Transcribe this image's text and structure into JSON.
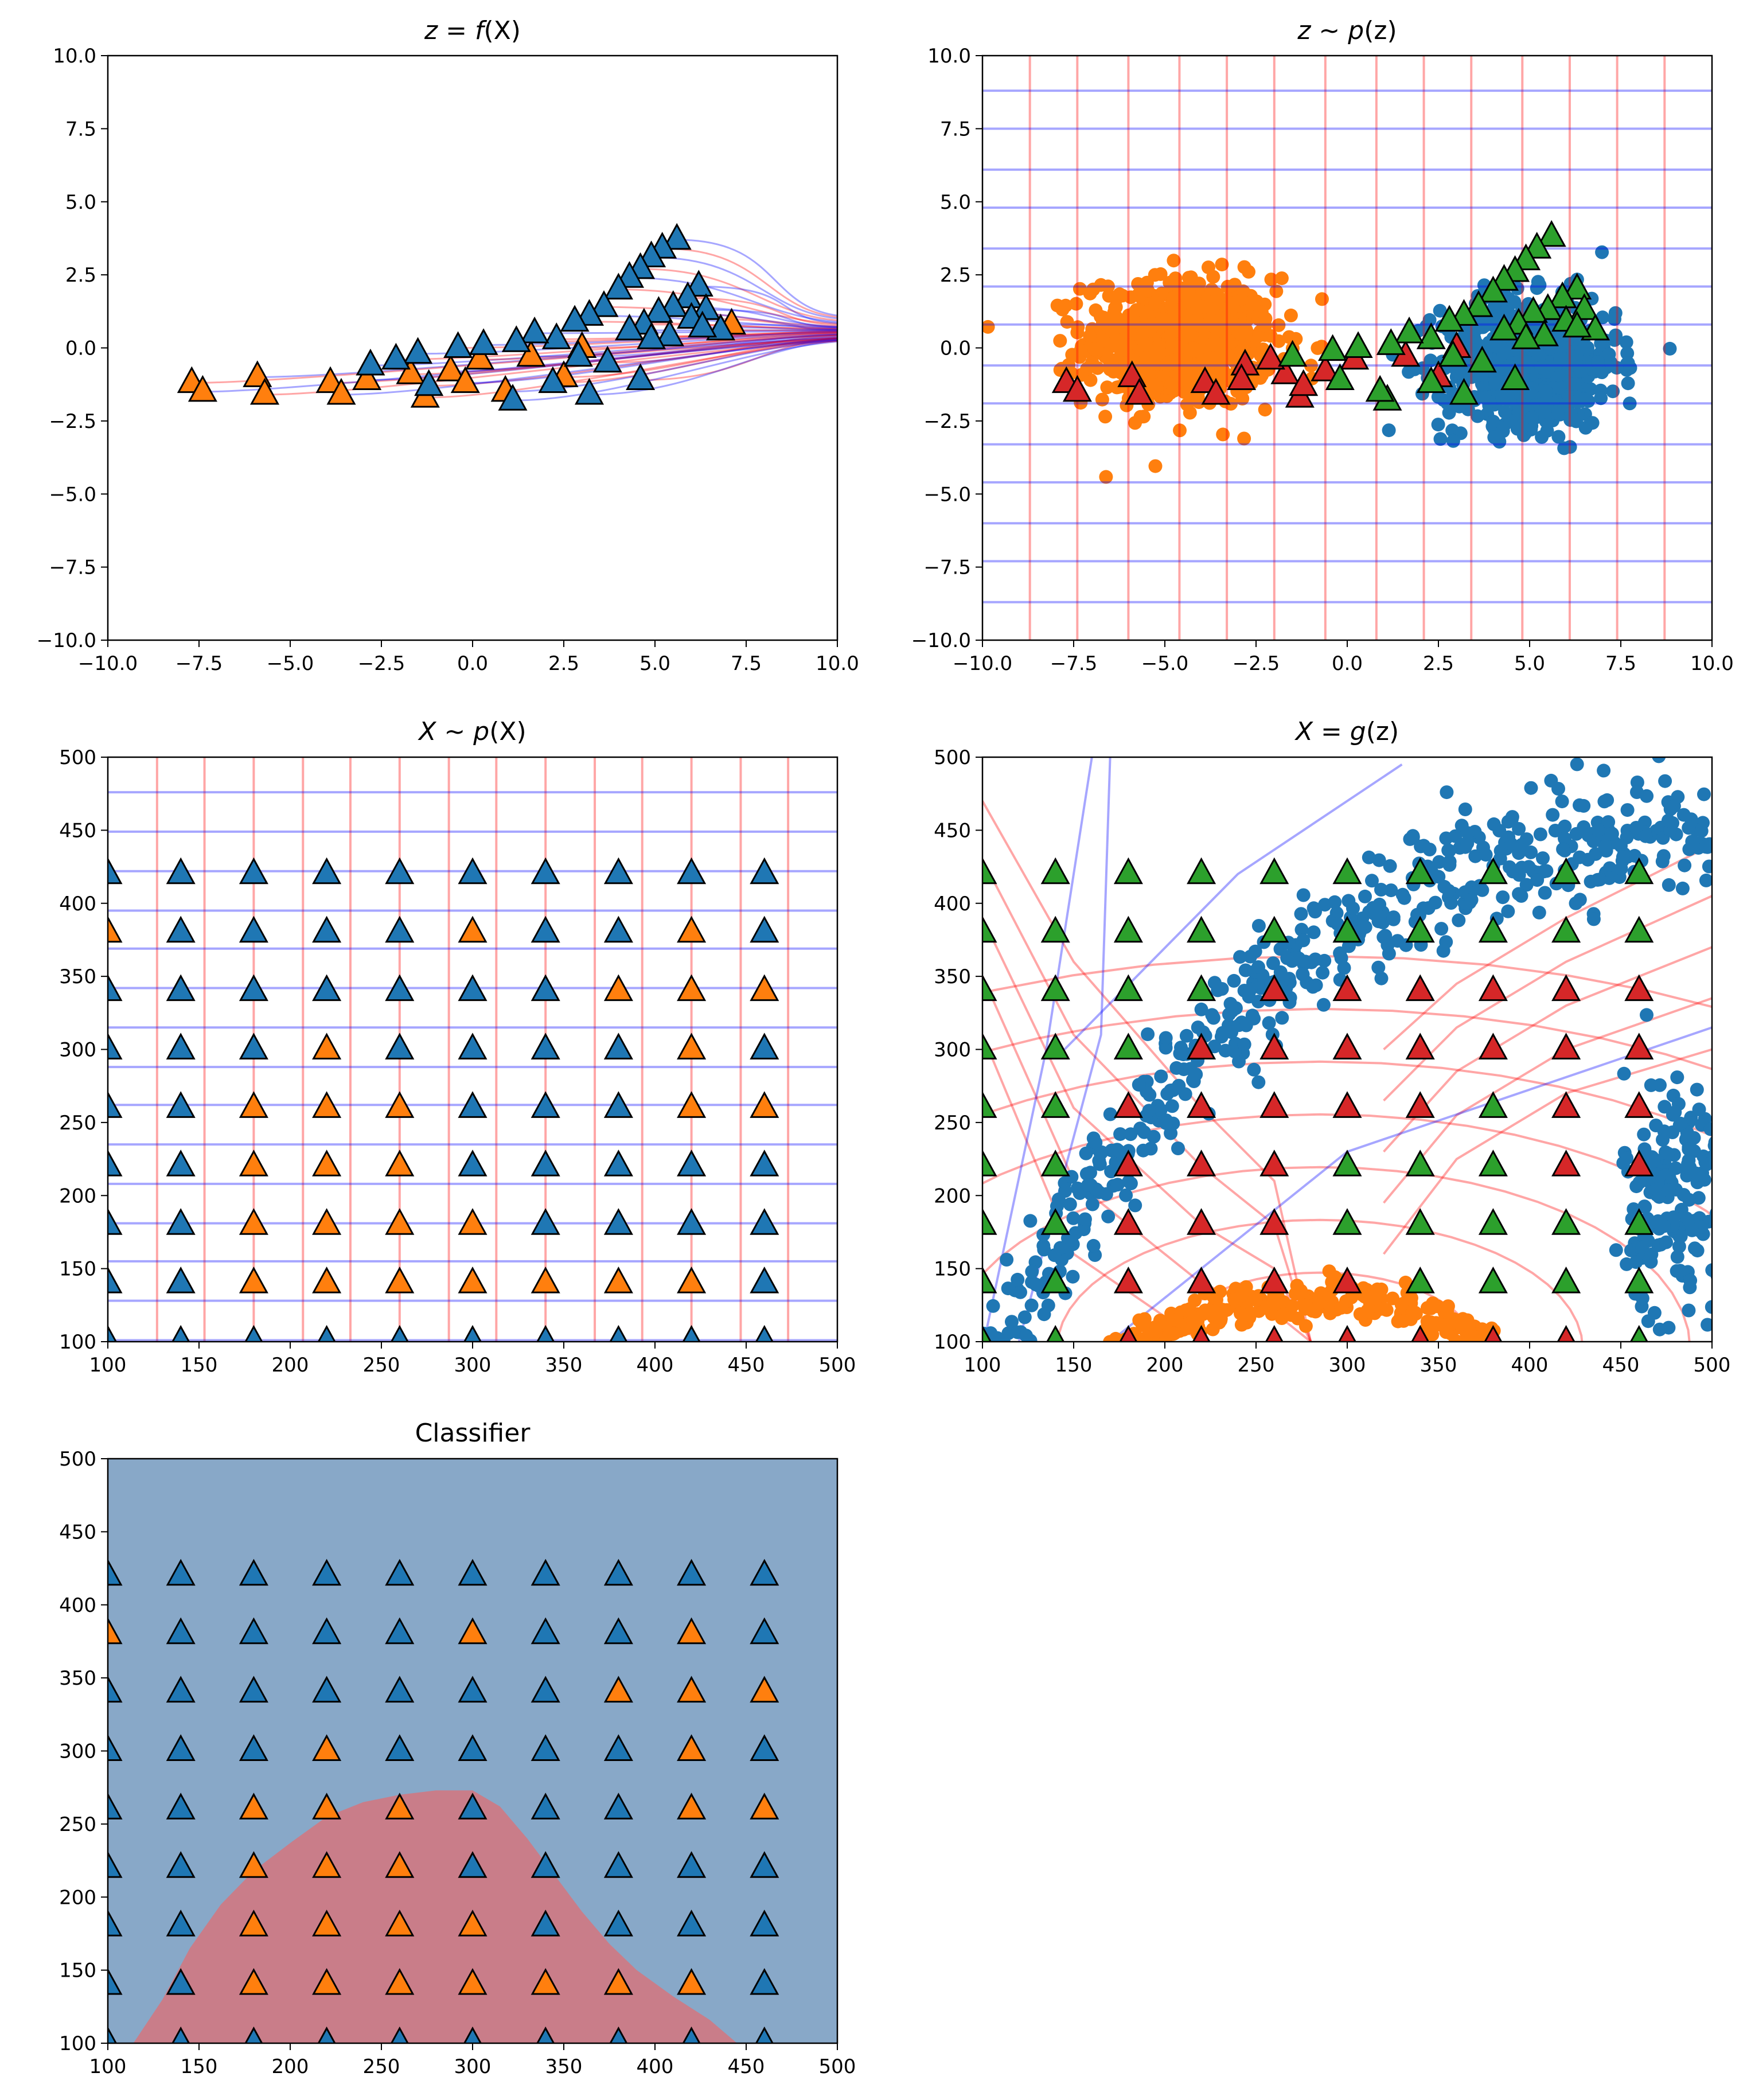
{
  "colors": {
    "blue": "#1f77b4",
    "orange": "#ff7f0e",
    "green": "#2ca02c",
    "red": "#d62728",
    "grid_red": "#ff0000",
    "grid_blue": "#0000ff",
    "region_blue": "#88a8c8",
    "region_red": "#c97d89"
  },
  "chart_data": [
    {
      "id": "zfx",
      "type": "scatter",
      "title": "z = f(X)",
      "title_main": "z = f",
      "title_paren": "(X)",
      "xlim": [
        -10,
        10
      ],
      "ylim": [
        -10,
        10
      ],
      "xticks": [
        -10,
        -7.5,
        -5,
        -2.5,
        0,
        2.5,
        5,
        7.5,
        10
      ],
      "yticks": [
        -10,
        -7.5,
        -5,
        -2.5,
        0,
        2.5,
        5,
        7.5,
        10
      ],
      "xtick_labels": [
        "−10.0",
        "−7.5",
        "−5.0",
        "−2.5",
        "0.0",
        "2.5",
        "5.0",
        "7.5",
        "10.0"
      ],
      "ytick_labels": [
        "−10.0",
        "−7.5",
        "−5.0",
        "−2.5",
        "0.0",
        "2.5",
        "5.0",
        "7.5",
        "10.0"
      ],
      "series": [
        {
          "marker": "triangle",
          "color": "blue",
          "points": [
            [
              5.6,
              3.7
            ],
            [
              5.2,
              3.4
            ],
            [
              4.9,
              3.1
            ],
            [
              4.6,
              2.7
            ],
            [
              4.3,
              2.4
            ],
            [
              4.0,
              2.0
            ],
            [
              6.2,
              2.1
            ],
            [
              5.9,
              1.7
            ],
            [
              5.5,
              1.4
            ],
            [
              3.6,
              1.4
            ],
            [
              3.2,
              1.1
            ],
            [
              2.8,
              0.9
            ],
            [
              6.4,
              1.3
            ],
            [
              6.0,
              1.0
            ],
            [
              5.1,
              1.2
            ],
            [
              4.7,
              0.8
            ],
            [
              4.3,
              0.6
            ],
            [
              6.8,
              0.6
            ],
            [
              6.3,
              0.7
            ],
            [
              5.4,
              0.4
            ],
            [
              4.9,
              0.3
            ],
            [
              2.3,
              0.3
            ],
            [
              1.7,
              0.5
            ],
            [
              1.2,
              0.2
            ],
            [
              0.3,
              0.1
            ],
            [
              -0.4,
              0.0
            ],
            [
              -1.5,
              -0.2
            ],
            [
              -2.1,
              -0.4
            ],
            [
              -2.8,
              -0.6
            ],
            [
              3.7,
              -0.5
            ],
            [
              2.9,
              -0.3
            ],
            [
              4.6,
              -1.1
            ],
            [
              3.2,
              -1.6
            ],
            [
              2.2,
              -1.2
            ],
            [
              1.1,
              -1.8
            ],
            [
              -1.2,
              -1.3
            ]
          ]
        },
        {
          "marker": "triangle",
          "color": "orange",
          "points": [
            [
              7.1,
              0.8
            ],
            [
              3.0,
              0.0
            ],
            [
              1.6,
              -0.3
            ],
            [
              0.2,
              -0.4
            ],
            [
              -0.6,
              -0.8
            ],
            [
              -1.7,
              -0.9
            ],
            [
              -2.9,
              -1.1
            ],
            [
              -3.9,
              -1.2
            ],
            [
              -5.9,
              -1.0
            ],
            [
              -7.7,
              -1.2
            ],
            [
              -7.4,
              -1.5
            ],
            [
              -5.7,
              -1.6
            ],
            [
              -3.6,
              -1.6
            ],
            [
              -1.3,
              -1.7
            ],
            [
              0.9,
              -1.5
            ],
            [
              2.5,
              -1.0
            ],
            [
              -0.2,
              -1.2
            ]
          ]
        }
      ]
    },
    {
      "id": "zpz",
      "type": "scatter",
      "title": "z ~ p(z)",
      "title_main": "z ~ p",
      "title_paren": "(z)",
      "xlim": [
        -10,
        10
      ],
      "ylim": [
        -10,
        10
      ],
      "xticks": [
        -10,
        -7.5,
        -5,
        -2.5,
        0,
        2.5,
        5,
        7.5,
        10
      ],
      "yticks": [
        -10,
        -7.5,
        -5,
        -2.5,
        0,
        2.5,
        5,
        7.5,
        10
      ],
      "xtick_labels": [
        "−10.0",
        "−7.5",
        "−5.0",
        "−2.5",
        "0.0",
        "2.5",
        "5.0",
        "7.5",
        "10.0"
      ],
      "ytick_labels": [
        "−10.0",
        "−7.5",
        "−5.0",
        "−2.5",
        "0.0",
        "2.5",
        "5.0",
        "7.5",
        "10.0"
      ],
      "grid_vertical_x": [
        -8.7,
        -7.4,
        -6.0,
        -4.6,
        -3.3,
        -2.0,
        -0.6,
        0.8,
        2.1,
        3.4,
        4.8,
        6.1,
        7.4,
        8.7
      ],
      "grid_horizontal_y": [
        8.8,
        7.5,
        6.1,
        4.8,
        3.4,
        2.1,
        0.8,
        -0.6,
        -1.9,
        -3.3,
        -4.6,
        -6.0,
        -7.3,
        -8.7
      ],
      "clusters": [
        {
          "color": "orange",
          "center": [
            -4.6,
            0.2
          ],
          "spread": [
            1.3,
            1.1
          ],
          "count": 700
        },
        {
          "color": "blue",
          "center": [
            5.0,
            -0.5
          ],
          "spread": [
            1.2,
            1.1
          ],
          "count": 700
        }
      ],
      "series": [
        {
          "marker": "triangle",
          "color": "green",
          "points": [
            [
              5.6,
              3.8
            ],
            [
              5.2,
              3.4
            ],
            [
              4.9,
              3.0
            ],
            [
              4.6,
              2.6
            ],
            [
              4.3,
              2.3
            ],
            [
              4.0,
              1.9
            ],
            [
              6.3,
              2.0
            ],
            [
              5.9,
              1.7
            ],
            [
              5.5,
              1.3
            ],
            [
              3.6,
              1.4
            ],
            [
              3.2,
              1.1
            ],
            [
              2.8,
              0.9
            ],
            [
              6.5,
              1.3
            ],
            [
              6.0,
              0.9
            ],
            [
              5.1,
              1.2
            ],
            [
              4.7,
              0.8
            ],
            [
              4.3,
              0.6
            ],
            [
              6.8,
              0.6
            ],
            [
              6.3,
              0.7
            ],
            [
              5.4,
              0.4
            ],
            [
              4.9,
              0.3
            ],
            [
              2.3,
              0.3
            ],
            [
              1.7,
              0.5
            ],
            [
              1.2,
              0.1
            ],
            [
              0.3,
              0.0
            ],
            [
              -0.4,
              -0.1
            ],
            [
              -1.5,
              -0.3
            ],
            [
              3.7,
              -0.5
            ],
            [
              2.9,
              -0.3
            ],
            [
              4.6,
              -1.1
            ],
            [
              3.2,
              -1.6
            ],
            [
              2.3,
              -1.2
            ],
            [
              1.1,
              -1.8
            ],
            [
              -0.2,
              -1.1
            ],
            [
              0.9,
              -1.5
            ]
          ]
        },
        {
          "marker": "triangle",
          "color": "red",
          "points": [
            [
              1.6,
              -0.3
            ],
            [
              0.2,
              -0.4
            ],
            [
              -0.6,
              -0.8
            ],
            [
              -1.7,
              -0.9
            ],
            [
              -2.1,
              -0.4
            ],
            [
              -2.8,
              -0.6
            ],
            [
              -2.9,
              -1.1
            ],
            [
              -3.9,
              -1.2
            ],
            [
              -5.9,
              -1.0
            ],
            [
              -7.7,
              -1.2
            ],
            [
              -7.4,
              -1.5
            ],
            [
              -5.7,
              -1.6
            ],
            [
              -3.6,
              -1.6
            ],
            [
              -1.3,
              -1.7
            ],
            [
              -1.2,
              -1.3
            ],
            [
              2.5,
              -1.0
            ],
            [
              3.0,
              0.0
            ]
          ]
        }
      ]
    },
    {
      "id": "xpx",
      "type": "scatter",
      "title": "X ~ p(X)",
      "title_main": "X ~ p",
      "title_paren": "(X)",
      "xlim": [
        100,
        500
      ],
      "ylim": [
        100,
        500
      ],
      "xticks": [
        100,
        150,
        200,
        250,
        300,
        350,
        400,
        450,
        500
      ],
      "yticks": [
        100,
        150,
        200,
        250,
        300,
        350,
        400,
        450,
        500
      ],
      "xtick_labels": [
        "100",
        "150",
        "200",
        "250",
        "300",
        "350",
        "400",
        "450",
        "500"
      ],
      "ytick_labels": [
        "100",
        "150",
        "200",
        "250",
        "300",
        "350",
        "400",
        "450",
        "500"
      ],
      "grid_vertical_x": [
        127,
        153,
        180,
        207,
        233,
        260,
        287,
        313,
        340,
        367,
        393,
        420,
        447,
        473
      ],
      "grid_horizontal_y": [
        476,
        449,
        422,
        395,
        369,
        342,
        315,
        288,
        262,
        235,
        208,
        181,
        155,
        128,
        101
      ],
      "grid_x": [
        100,
        140,
        180,
        220,
        260,
        300,
        340,
        380,
        420,
        460
      ],
      "grid_y": [
        100,
        140,
        180,
        220,
        260,
        300,
        340,
        380,
        420
      ],
      "grid_classes": [
        [
          "B",
          "B",
          "B",
          "B",
          "B",
          "B",
          "B",
          "B",
          "B",
          "B"
        ],
        [
          "B",
          "B",
          "O",
          "O",
          "O",
          "O",
          "O",
          "O",
          "O",
          "B"
        ],
        [
          "B",
          "B",
          "O",
          "O",
          "O",
          "O",
          "B",
          "B",
          "B",
          "B"
        ],
        [
          "B",
          "B",
          "O",
          "O",
          "O",
          "B",
          "B",
          "B",
          "B",
          "B"
        ],
        [
          "B",
          "B",
          "O",
          "O",
          "O",
          "B",
          "B",
          "B",
          "O",
          "O"
        ],
        [
          "B",
          "B",
          "B",
          "O",
          "B",
          "B",
          "B",
          "B",
          "O",
          "B"
        ],
        [
          "B",
          "B",
          "B",
          "B",
          "B",
          "B",
          "B",
          "O",
          "O",
          "O"
        ],
        [
          "O",
          "B",
          "B",
          "B",
          "B",
          "O",
          "B",
          "B",
          "O",
          "B"
        ],
        [
          "B",
          "B",
          "B",
          "B",
          "B",
          "B",
          "B",
          "B",
          "B",
          "B"
        ]
      ]
    },
    {
      "id": "xgz",
      "type": "scatter",
      "title": "X = g(z)",
      "title_main": "X = g",
      "title_paren": "(z)",
      "xlim": [
        100,
        500
      ],
      "ylim": [
        100,
        500
      ],
      "xticks": [
        100,
        150,
        200,
        250,
        300,
        350,
        400,
        450,
        500
      ],
      "yticks": [
        100,
        150,
        200,
        250,
        300,
        350,
        400,
        450,
        500
      ],
      "xtick_labels": [
        "100",
        "150",
        "200",
        "250",
        "300",
        "350",
        "400",
        "450",
        "500"
      ],
      "ytick_labels": [
        "100",
        "150",
        "200",
        "250",
        "300",
        "350",
        "400",
        "450",
        "500"
      ],
      "grid_x": [
        100,
        140,
        180,
        220,
        260,
        300,
        340,
        380,
        420,
        460
      ],
      "grid_y": [
        100,
        140,
        180,
        220,
        260,
        300,
        340,
        380,
        420
      ],
      "grid_classes": [
        [
          "G",
          "G",
          "R",
          "R",
          "R",
          "R",
          "R",
          "R",
          "R",
          "G"
        ],
        [
          "G",
          "G",
          "R",
          "R",
          "R",
          "R",
          "G",
          "G",
          "G",
          "G"
        ],
        [
          "G",
          "G",
          "R",
          "R",
          "R",
          "G",
          "G",
          "G",
          "G",
          "G"
        ],
        [
          "G",
          "G",
          "R",
          "R",
          "R",
          "G",
          "G",
          "G",
          "R",
          "R"
        ],
        [
          "G",
          "G",
          "R",
          "R",
          "R",
          "R",
          "R",
          "G",
          "R",
          "R"
        ],
        [
          "G",
          "G",
          "G",
          "R",
          "R",
          "R",
          "R",
          "R",
          "R",
          "R"
        ],
        [
          "G",
          "G",
          "G",
          "G",
          "R",
          "R",
          "R",
          "R",
          "R",
          "R"
        ],
        [
          "G",
          "G",
          "G",
          "G",
          "G",
          "G",
          "G",
          "G",
          "G",
          "G"
        ],
        [
          "G",
          "G",
          "G",
          "G",
          "G",
          "G",
          "G",
          "G",
          "G",
          "G"
        ]
      ]
    },
    {
      "id": "classifier",
      "type": "heatmap",
      "title": "Classifier",
      "xlim": [
        100,
        500
      ],
      "ylim": [
        100,
        500
      ],
      "xticks": [
        100,
        150,
        200,
        250,
        300,
        350,
        400,
        450,
        500
      ],
      "yticks": [
        100,
        150,
        200,
        250,
        300,
        350,
        400,
        450,
        500
      ],
      "xtick_labels": [
        "100",
        "150",
        "200",
        "250",
        "300",
        "350",
        "400",
        "450",
        "500"
      ],
      "ytick_labels": [
        "100",
        "150",
        "200",
        "250",
        "300",
        "350",
        "400",
        "450",
        "500"
      ],
      "region_boundary": [
        [
          114,
          100
        ],
        [
          130,
          130
        ],
        [
          145,
          165
        ],
        [
          162,
          195
        ],
        [
          180,
          218
        ],
        [
          200,
          237
        ],
        [
          220,
          255
        ],
        [
          240,
          265
        ],
        [
          260,
          270
        ],
        [
          280,
          273
        ],
        [
          300,
          273
        ],
        [
          315,
          262
        ],
        [
          330,
          240
        ],
        [
          345,
          215
        ],
        [
          360,
          190
        ],
        [
          375,
          168
        ],
        [
          390,
          150
        ],
        [
          410,
          132
        ],
        [
          430,
          116
        ],
        [
          445,
          100
        ]
      ],
      "grid_x": [
        100,
        140,
        180,
        220,
        260,
        300,
        340,
        380,
        420,
        460
      ],
      "grid_y": [
        100,
        140,
        180,
        220,
        260,
        300,
        340,
        380,
        420
      ],
      "grid_classes": [
        [
          "B",
          "B",
          "B",
          "B",
          "B",
          "B",
          "B",
          "B",
          "B",
          "B"
        ],
        [
          "B",
          "B",
          "O",
          "O",
          "O",
          "O",
          "O",
          "O",
          "O",
          "B"
        ],
        [
          "B",
          "B",
          "O",
          "O",
          "O",
          "O",
          "B",
          "B",
          "B",
          "B"
        ],
        [
          "B",
          "B",
          "O",
          "O",
          "O",
          "B",
          "B",
          "B",
          "B",
          "B"
        ],
        [
          "B",
          "B",
          "O",
          "O",
          "O",
          "B",
          "B",
          "B",
          "O",
          "O"
        ],
        [
          "B",
          "B",
          "B",
          "O",
          "B",
          "B",
          "B",
          "B",
          "O",
          "B"
        ],
        [
          "B",
          "B",
          "B",
          "B",
          "B",
          "B",
          "B",
          "O",
          "O",
          "O"
        ],
        [
          "O",
          "B",
          "B",
          "B",
          "B",
          "O",
          "B",
          "B",
          "O",
          "B"
        ],
        [
          "B",
          "B",
          "B",
          "B",
          "B",
          "B",
          "B",
          "B",
          "B",
          "B"
        ]
      ]
    }
  ]
}
